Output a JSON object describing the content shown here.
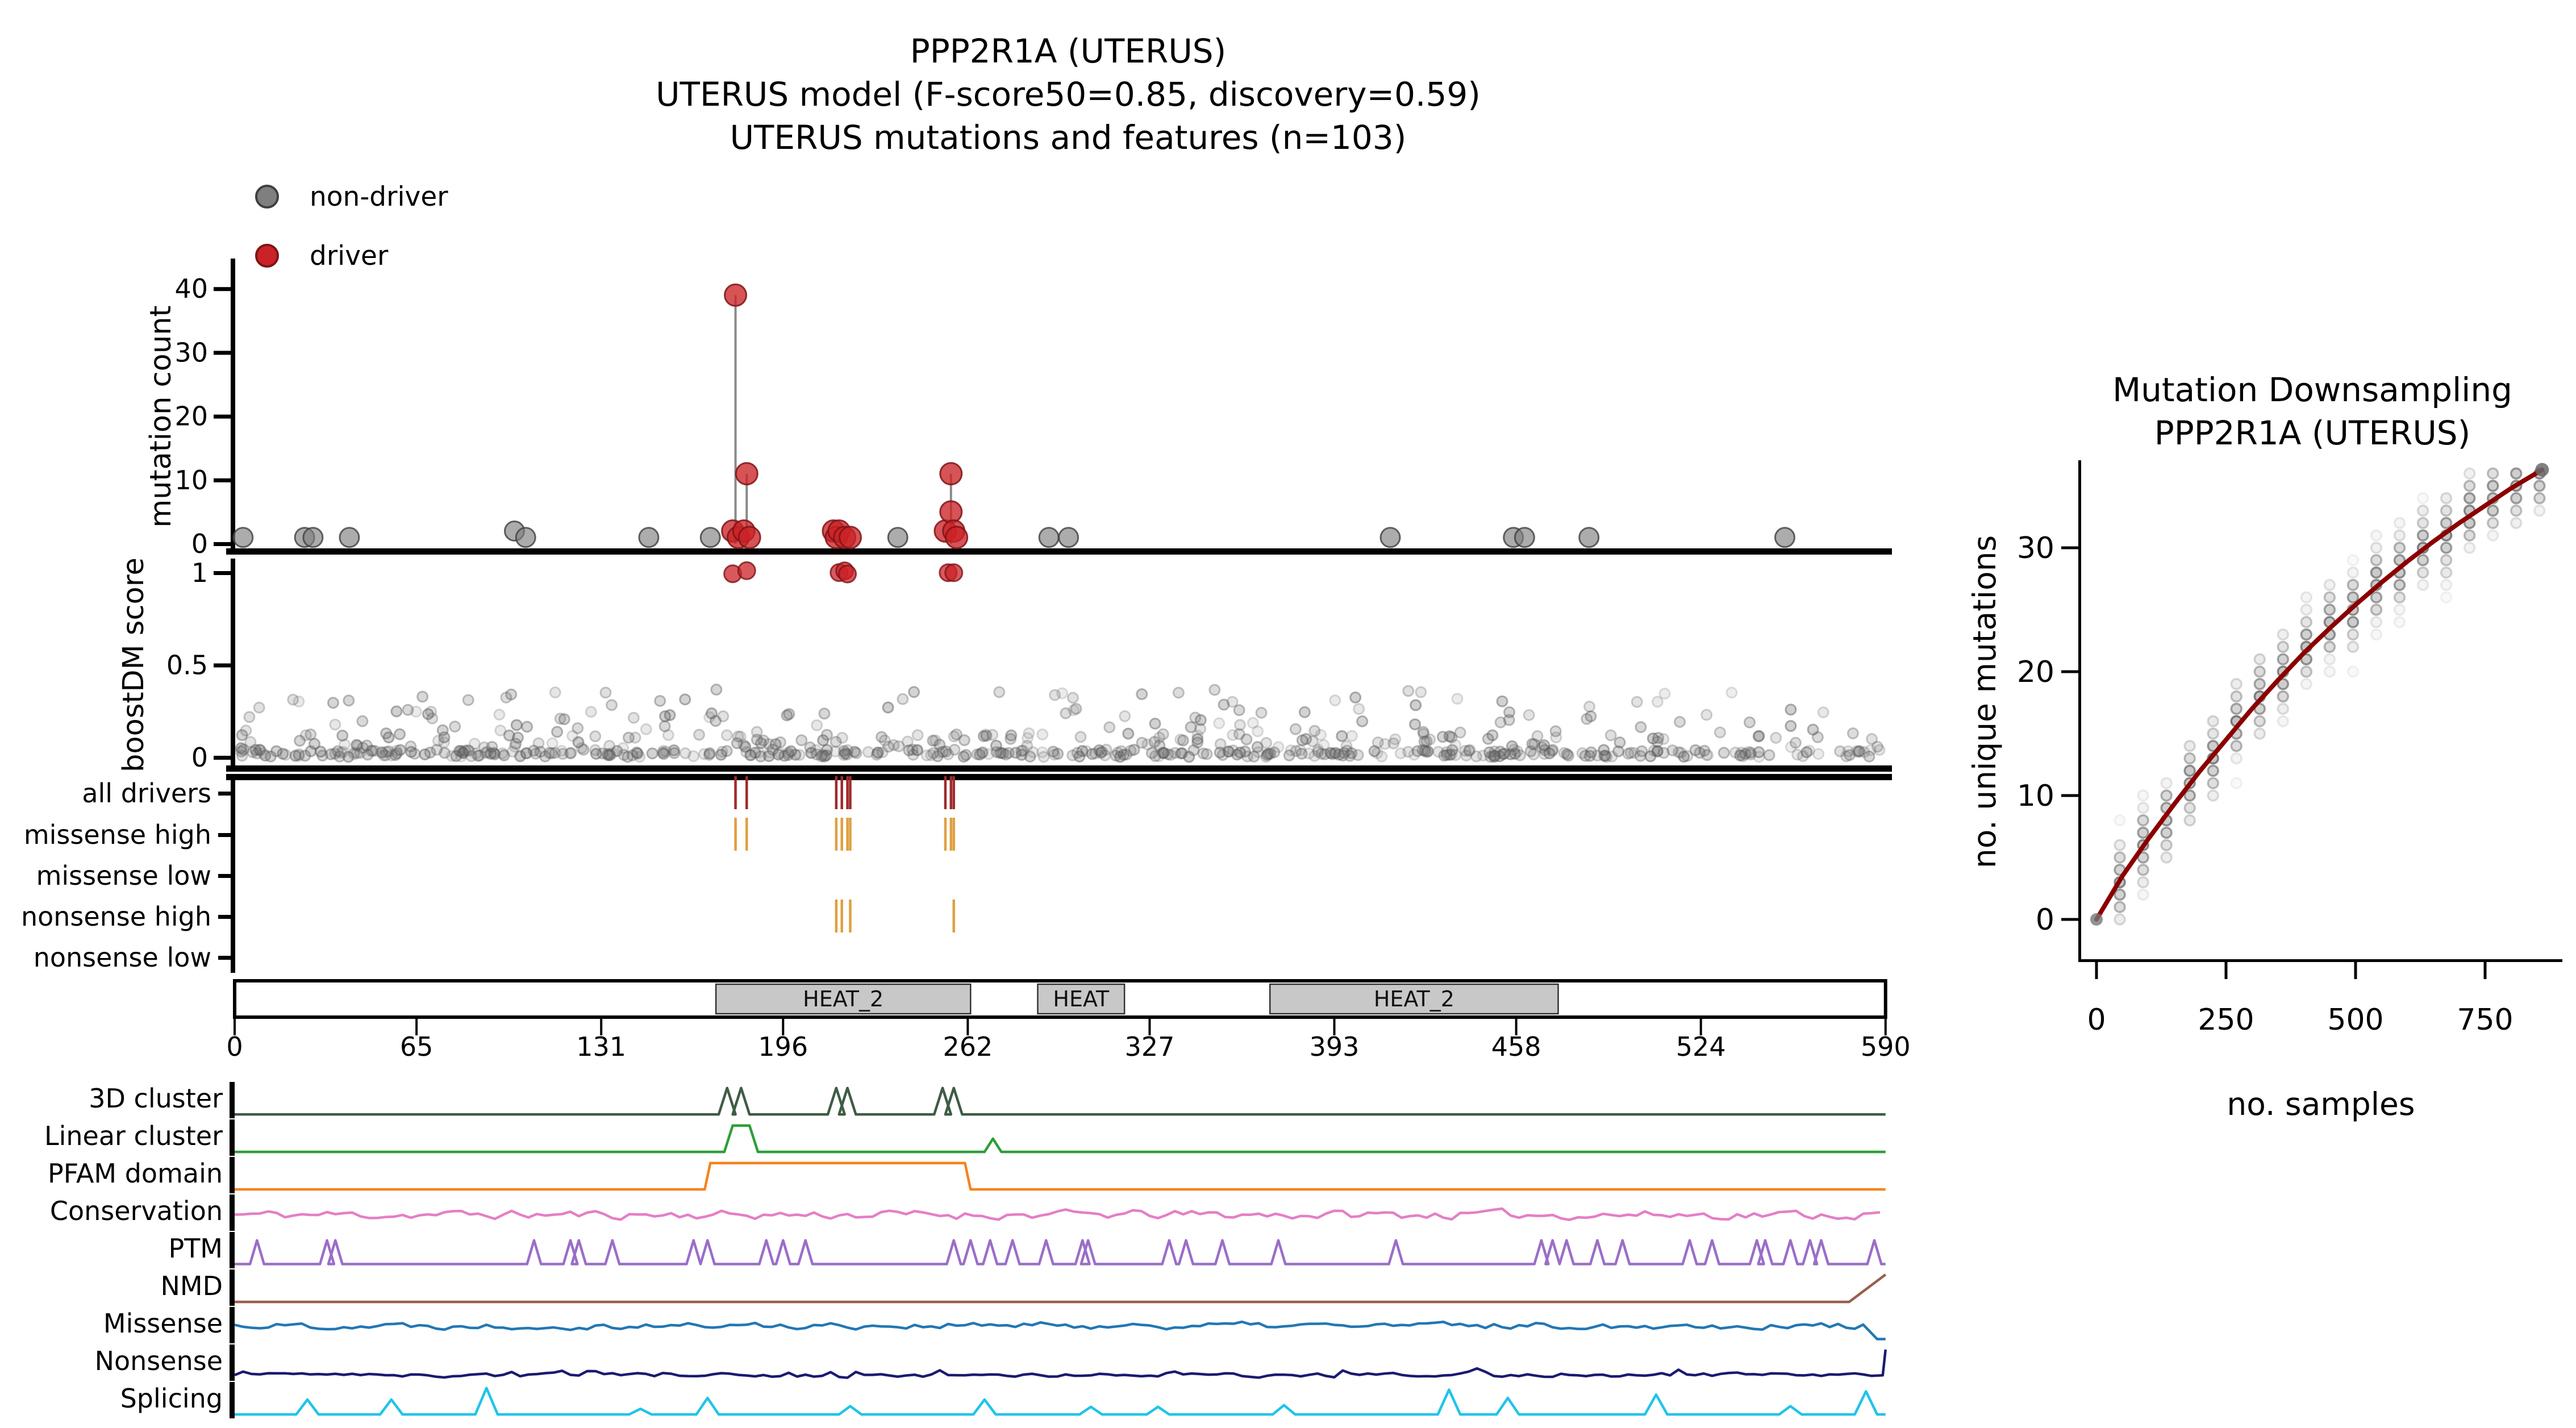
{
  "title": {
    "line1": "PPP2R1A (UTERUS)",
    "line2": "UTERUS model (F-score50=0.85, discovery=0.59)",
    "line3": "UTERUS mutations and features (n=103)"
  },
  "legend": {
    "items": [
      {
        "label": "non-driver",
        "color": "#7f7f7f",
        "edge": "#3f3f3f"
      },
      {
        "label": "driver",
        "color": "#cb2227",
        "edge": "#7e1416"
      }
    ]
  },
  "axes": {
    "mutation_count_label": "mutation count",
    "boostdm_score_label": "boostDM score"
  },
  "right_panel": {
    "title_line1": "Mutation Downsampling",
    "title_line2": "PPP2R1A (UTERUS)",
    "xlabel": "no. samples",
    "ylabel": "no. unique mutations"
  },
  "colors": {
    "driver": "#cb2227",
    "driver_edge": "#7e1416",
    "non_driver": "#7f7f7f",
    "non_driver_edge": "#3f3f3f",
    "stem": "#8a8a8a",
    "all_drivers_tick": "#9e2a2b",
    "high_tick": "#dfa040",
    "domain_fill": "#c8c8c8",
    "downsampling_curve": "#8b0000"
  },
  "chart_data": [
    {
      "id": "mutation_needle",
      "type": "scatter",
      "ylabel": "mutation count",
      "xlim": [
        0,
        590
      ],
      "ylim": [
        0,
        42
      ],
      "yticks": [
        0,
        10,
        20,
        30,
        40
      ],
      "drivers": [
        {
          "pos": 179,
          "count": 39,
          "stem": true
        },
        {
          "pos": 183,
          "count": 11,
          "stem": true
        },
        {
          "pos": 178,
          "count": 2
        },
        {
          "pos": 180,
          "count": 1
        },
        {
          "pos": 182,
          "count": 2
        },
        {
          "pos": 184,
          "count": 1
        },
        {
          "pos": 214,
          "count": 2
        },
        {
          "pos": 215,
          "count": 1
        },
        {
          "pos": 216,
          "count": 2
        },
        {
          "pos": 218,
          "count": 1
        },
        {
          "pos": 220,
          "count": 1
        },
        {
          "pos": 254,
          "count": 2
        },
        {
          "pos": 256,
          "count": 11,
          "stem": true
        },
        {
          "pos": 256,
          "count": 5
        },
        {
          "pos": 257,
          "count": 2
        },
        {
          "pos": 258,
          "count": 1
        }
      ],
      "non_drivers": [
        {
          "pos": 3,
          "count": 1
        },
        {
          "pos": 25,
          "count": 1
        },
        {
          "pos": 28,
          "count": 1
        },
        {
          "pos": 41,
          "count": 1
        },
        {
          "pos": 100,
          "count": 2
        },
        {
          "pos": 104,
          "count": 1
        },
        {
          "pos": 148,
          "count": 1
        },
        {
          "pos": 170,
          "count": 1
        },
        {
          "pos": 237,
          "count": 1
        },
        {
          "pos": 291,
          "count": 1
        },
        {
          "pos": 298,
          "count": 1
        },
        {
          "pos": 413,
          "count": 1
        },
        {
          "pos": 457,
          "count": 1
        },
        {
          "pos": 461,
          "count": 1
        },
        {
          "pos": 484,
          "count": 1
        },
        {
          "pos": 554,
          "count": 1
        }
      ]
    },
    {
      "id": "boostdm_score",
      "type": "scatter",
      "ylabel": "boostDM score",
      "ylim": [
        0,
        1
      ],
      "yticks": [
        0,
        0.5,
        1
      ],
      "driver_score1_positions": [
        178,
        183,
        216,
        218,
        219,
        255,
        257
      ],
      "background_scatter": {
        "n": 640,
        "seed": 7,
        "y_bands": [
          0.02,
          0.08,
          0.15,
          0.22,
          0.3
        ],
        "ymax": 0.37
      }
    },
    {
      "id": "driver_tracks",
      "type": "ticks",
      "rows": [
        {
          "label": "all drivers",
          "color": "#9e2a2b",
          "positions": [
            179,
            183,
            215,
            217,
            219,
            220,
            254,
            256,
            257
          ]
        },
        {
          "label": "missense high",
          "color": "#dfa040",
          "positions": [
            179,
            183,
            215,
            217,
            219,
            220,
            254,
            256,
            257
          ]
        },
        {
          "label": "missense low",
          "color": "#dfa040",
          "positions": []
        },
        {
          "label": "nonsense high",
          "color": "#dfa040",
          "positions": [
            215,
            217,
            220,
            257
          ]
        },
        {
          "label": "nonsense low",
          "color": "#dfa040",
          "positions": []
        }
      ]
    },
    {
      "id": "protein_domains",
      "type": "domain_bar",
      "length": 590,
      "xticks": [
        0,
        65,
        131,
        196,
        262,
        327,
        393,
        458,
        524,
        590
      ],
      "domains": [
        {
          "label": "HEAT_2",
          "start": 172,
          "end": 263
        },
        {
          "label": "HEAT",
          "start": 287,
          "end": 318
        },
        {
          "label": "HEAT_2",
          "start": 370,
          "end": 473
        }
      ]
    },
    {
      "id": "feature_tracks",
      "type": "lines",
      "tracks": [
        {
          "label": "3D cluster",
          "color": "#3f5c44",
          "kind": "spikes",
          "base": 0.05,
          "w": 3,
          "spikes": [
            {
              "pos": 176,
              "h": 0.85
            },
            {
              "pos": 181,
              "h": 0.85
            },
            {
              "pos": 215,
              "h": 0.85
            },
            {
              "pos": 219,
              "h": 0.85
            },
            {
              "pos": 253,
              "h": 0.85
            },
            {
              "pos": 257,
              "h": 0.85
            }
          ]
        },
        {
          "label": "Linear cluster",
          "color": "#2e9e38",
          "kind": "spikes",
          "base": 0.05,
          "w": 3,
          "spikes": [
            {
              "pos": 181,
              "h": 0.85,
              "flat": 6
            },
            {
              "pos": 271,
              "h": 0.45
            }
          ]
        },
        {
          "label": "PFAM domain",
          "color": "#f78320",
          "kind": "step",
          "base": 0.05,
          "regions": [
            {
              "start": 168,
              "end": 261,
              "h": 0.85
            }
          ]
        },
        {
          "label": "Conservation",
          "color": "#e47fc5",
          "kind": "noise",
          "base": 0.42,
          "amp": 0.16,
          "seed": 11
        },
        {
          "label": "PTM",
          "color": "#9a6ec8",
          "kind": "spikes",
          "base": 0.06,
          "w": 2.5,
          "h": 0.78,
          "positions": [
            8,
            33,
            36,
            107,
            120,
            123,
            135,
            164,
            169,
            190,
            196,
            204,
            257,
            263,
            270,
            278,
            290,
            303,
            305,
            334,
            340,
            353,
            373,
            415,
            467,
            471,
            476,
            487,
            496,
            520,
            528,
            544,
            547,
            556,
            563,
            567,
            586
          ]
        },
        {
          "label": "NMD",
          "color": "#98604e",
          "kind": "ramp_end",
          "base": 0.05,
          "ramp_start": 577,
          "end_h": 0.88
        },
        {
          "label": "Missense",
          "color": "#2277b4",
          "kind": "noise",
          "base": 0.47,
          "amp": 0.12,
          "seed": 22,
          "end_drop": {
            "start": 584,
            "to": 0.06
          }
        },
        {
          "label": "Nonsense",
          "color": "#1b1a70",
          "kind": "noise",
          "base": 0.1,
          "amp": 0.07,
          "seed": 33,
          "end_jump": {
            "start": 587,
            "to": 0.88
          }
        },
        {
          "label": "Splicing",
          "color": "#20c4e8",
          "kind": "spikes",
          "base": 0.05,
          "w": 4,
          "spikes": [
            {
              "pos": 26,
              "h": 0.5
            },
            {
              "pos": 56,
              "h": 0.5
            },
            {
              "pos": 90,
              "h": 0.85
            },
            {
              "pos": 145,
              "h": 0.22
            },
            {
              "pos": 169,
              "h": 0.55
            },
            {
              "pos": 220,
              "h": 0.3
            },
            {
              "pos": 268,
              "h": 0.5
            },
            {
              "pos": 306,
              "h": 0.28
            },
            {
              "pos": 330,
              "h": 0.28
            },
            {
              "pos": 375,
              "h": 0.33
            },
            {
              "pos": 434,
              "h": 0.8
            },
            {
              "pos": 455,
              "h": 0.55
            },
            {
              "pos": 508,
              "h": 0.65
            },
            {
              "pos": 556,
              "h": 0.3
            },
            {
              "pos": 583,
              "h": 0.75
            }
          ]
        }
      ]
    },
    {
      "id": "downsampling",
      "type": "scatter+line",
      "title": "Mutation Downsampling PPP2R1A (UTERUS)",
      "xlabel": "no. samples",
      "ylabel": "no. unique mutations",
      "xticks": [
        0,
        250,
        500,
        750
      ],
      "yticks": [
        0,
        10,
        20,
        30
      ],
      "xlim": [
        0,
        880
      ],
      "ylim": [
        0,
        37
      ],
      "curve_color": "#8b0000",
      "curve": [
        [
          0,
          0
        ],
        [
          50,
          3.5
        ],
        [
          100,
          6.5
        ],
        [
          150,
          9.3
        ],
        [
          200,
          12.0
        ],
        [
          250,
          14.5
        ],
        [
          300,
          17.0
        ],
        [
          350,
          19.3
        ],
        [
          400,
          21.5
        ],
        [
          450,
          23.5
        ],
        [
          500,
          25.4
        ],
        [
          550,
          27.2
        ],
        [
          600,
          28.9
        ],
        [
          650,
          30.5
        ],
        [
          700,
          32.0
        ],
        [
          750,
          33.4
        ],
        [
          800,
          34.8
        ],
        [
          860,
          36.3
        ]
      ],
      "columns": {
        "start": 45,
        "step": 45,
        "count": 19,
        "spread": 5,
        "seed": 5
      }
    }
  ]
}
